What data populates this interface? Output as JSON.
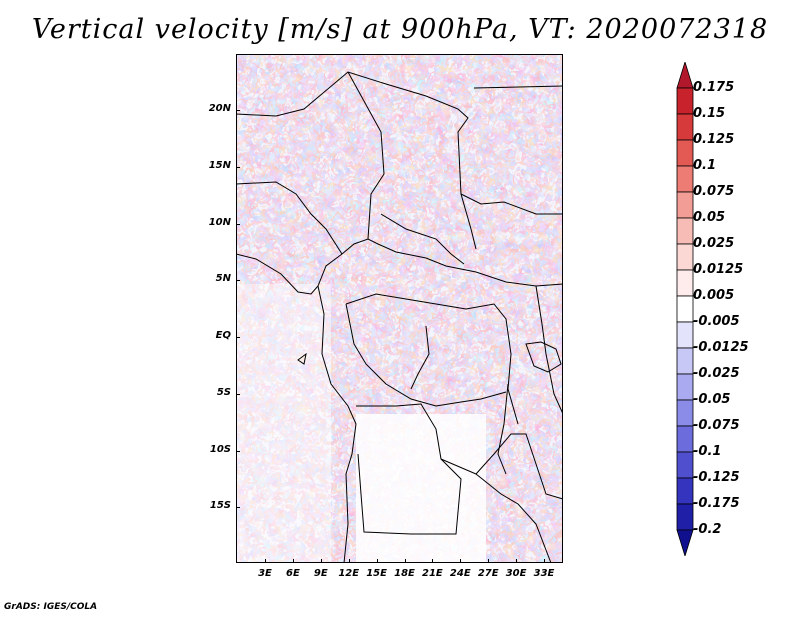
{
  "title": "Vertical velocity [m/s] at 900hPa, VT: 2020072318",
  "credit": "GrADS: IGES/COLA",
  "map": {
    "lat_labels": [
      "20N",
      "15N",
      "10N",
      "5N",
      "EQ",
      "5S",
      "10S",
      "15S"
    ],
    "lat_values": [
      20,
      15,
      10,
      5,
      0,
      -5,
      -10,
      -15
    ],
    "lon_labels": [
      "3E",
      "6E",
      "9E",
      "12E",
      "15E",
      "18E",
      "21E",
      "24E",
      "27E",
      "30E",
      "33E"
    ],
    "lon_values": [
      3,
      6,
      9,
      12,
      15,
      18,
      21,
      24,
      27,
      30,
      33
    ]
  },
  "colorbar": {
    "labels": [
      "0.175",
      "0.15",
      "0.125",
      "0.1",
      "0.075",
      "0.05",
      "0.025",
      "0.0125",
      "0.005",
      "-0.005",
      "-0.0125",
      "-0.025",
      "-0.05",
      "-0.075",
      "-0.1",
      "-0.125",
      "-0.175",
      "-0.2"
    ],
    "colors": [
      "#b2182b",
      "#c8232d",
      "#d73a3a",
      "#e35a55",
      "#ec7c74",
      "#f29d95",
      "#f7bcb5",
      "#fbd8d3",
      "#fdeceb",
      "#ffffff",
      "#e3e3fb",
      "#c8c8f6",
      "#aaaaf0",
      "#8b8be8",
      "#6c6cdd",
      "#5050cf",
      "#3434bf",
      "#1f1fa8",
      "#10108f"
    ]
  }
}
